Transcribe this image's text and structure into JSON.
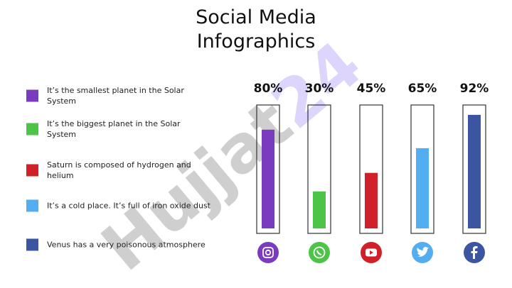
{
  "chart_data": {
    "type": "bar",
    "title": "Social Media Infographics",
    "watermark": "Hujjat24",
    "categories": [
      "It’s the smallest planet in the Solar System",
      "It’s the biggest planet in the Solar System",
      "Saturn is composed of hydrogen and helium",
      "It’s a cold place. It’s full of iron oxide dust",
      "Venus has a very poisonous atmosphere"
    ],
    "values": [
      80,
      30,
      45,
      65,
      92
    ],
    "value_labels": [
      "80%",
      "30%",
      "45%",
      "65%",
      "92%"
    ],
    "colors": [
      "#7b3bbf",
      "#4cc447",
      "#d0202a",
      "#52aef0",
      "#3b55a0"
    ],
    "ylim": [
      0,
      100
    ]
  }
}
